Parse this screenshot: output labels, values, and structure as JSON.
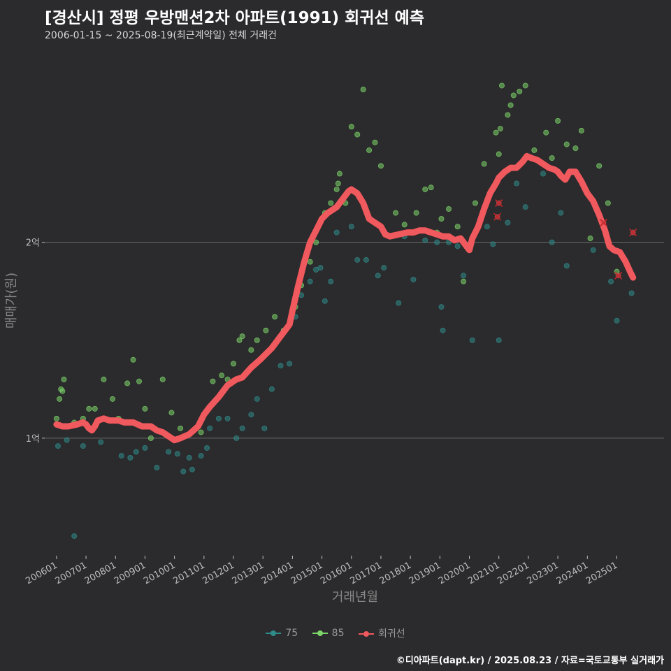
{
  "header": {
    "title": "[경산시] 정평 우방맨션2차 아파트(1991) 회귀선 예측",
    "subtitle": "2006-01-15 ~ 2025-08-19(최근계약일) 전체 거래건"
  },
  "footer": {
    "credit": "©디아파트(dapt.kr) / 2025.08.23 / 자료=국토교통부 실거래가"
  },
  "colors": {
    "background": "#2b2a2c",
    "series_75": "#2f8a8a",
    "series_85": "#7cd46a",
    "regression": "#f0595d",
    "gridline": "#6a6a6a"
  },
  "legend": [
    {
      "label": "75",
      "color": "#2f8a8a"
    },
    {
      "label": "85",
      "color": "#7cd46a"
    },
    {
      "label": "회귀선",
      "color": "#f0595d"
    }
  ],
  "chart_data": {
    "type": "scatter",
    "title": "[경산시] 정평 우방맨션2차 아파트(1991) 회귀선 예측",
    "xlabel": "거래년월",
    "ylabel": "매매가(원)",
    "x_unit": "decimal year",
    "y_unit": "억원",
    "xlim": [
      2005.6,
      2026.6
    ],
    "ylim": [
      0.4,
      2.98
    ],
    "y_ticks": [
      {
        "value": 1,
        "label": "1억"
      },
      {
        "value": 2,
        "label": "2억"
      }
    ],
    "x_ticks": [
      {
        "value": 2006,
        "label": "200601"
      },
      {
        "value": 2007,
        "label": "200701"
      },
      {
        "value": 2008,
        "label": "200801"
      },
      {
        "value": 2009,
        "label": "200901"
      },
      {
        "value": 2010,
        "label": "201001"
      },
      {
        "value": 2011,
        "label": "201101"
      },
      {
        "value": 2012,
        "label": "201201"
      },
      {
        "value": 2013,
        "label": "201301"
      },
      {
        "value": 2014,
        "label": "201401"
      },
      {
        "value": 2015,
        "label": "201501"
      },
      {
        "value": 2016,
        "label": "201601"
      },
      {
        "value": 2017,
        "label": "201701"
      },
      {
        "value": 2018,
        "label": "201801"
      },
      {
        "value": 2019,
        "label": "201901"
      },
      {
        "value": 2020,
        "label": "202001"
      },
      {
        "value": 2021,
        "label": "202101"
      },
      {
        "value": 2022,
        "label": "202201"
      },
      {
        "value": 2023,
        "label": "202301"
      },
      {
        "value": 2024,
        "label": "202401"
      },
      {
        "value": 2025,
        "label": "202501"
      }
    ],
    "series": [
      {
        "name": "75",
        "points": [
          [
            2006.05,
            0.96
          ],
          [
            2006.35,
            0.99
          ],
          [
            2006.6,
            0.5
          ],
          [
            2006.9,
            0.96
          ],
          [
            2007.5,
            0.98
          ],
          [
            2008.2,
            0.91
          ],
          [
            2008.5,
            0.9
          ],
          [
            2008.7,
            0.93
          ],
          [
            2009.0,
            0.95
          ],
          [
            2009.4,
            0.85
          ],
          [
            2009.8,
            0.93
          ],
          [
            2010.1,
            0.92
          ],
          [
            2010.3,
            0.83
          ],
          [
            2010.5,
            0.9
          ],
          [
            2010.6,
            0.84
          ],
          [
            2010.9,
            0.91
          ],
          [
            2011.1,
            0.95
          ],
          [
            2011.2,
            1.05
          ],
          [
            2011.5,
            1.1
          ],
          [
            2011.8,
            1.1
          ],
          [
            2012.1,
            1.0
          ],
          [
            2012.3,
            1.05
          ],
          [
            2012.6,
            1.12
          ],
          [
            2012.8,
            1.2
          ],
          [
            2013.05,
            1.05
          ],
          [
            2013.3,
            1.25
          ],
          [
            2013.6,
            1.37
          ],
          [
            2013.9,
            1.38
          ],
          [
            2014.1,
            1.62
          ],
          [
            2014.3,
            1.73
          ],
          [
            2014.6,
            1.8
          ],
          [
            2014.8,
            1.86
          ],
          [
            2014.95,
            1.87
          ],
          [
            2015.1,
            1.7
          ],
          [
            2015.3,
            1.8
          ],
          [
            2015.5,
            2.05
          ],
          [
            2015.7,
            2.22
          ],
          [
            2016.0,
            2.08
          ],
          [
            2016.2,
            1.91
          ],
          [
            2016.5,
            1.91
          ],
          [
            2016.9,
            1.83
          ],
          [
            2017.1,
            1.87
          ],
          [
            2017.6,
            1.69
          ],
          [
            2017.8,
            2.03
          ],
          [
            2018.1,
            1.81
          ],
          [
            2018.5,
            2.01
          ],
          [
            2018.9,
            2.0
          ],
          [
            2019.05,
            1.67
          ],
          [
            2019.1,
            1.55
          ],
          [
            2019.3,
            2.0
          ],
          [
            2019.6,
            1.98
          ],
          [
            2019.8,
            1.83
          ],
          [
            2020.1,
            1.5
          ],
          [
            2020.6,
            2.08
          ],
          [
            2020.8,
            1.99
          ],
          [
            2021.0,
            1.5
          ],
          [
            2021.3,
            2.1
          ],
          [
            2021.6,
            2.3
          ],
          [
            2021.9,
            2.18
          ],
          [
            2022.5,
            2.35
          ],
          [
            2022.8,
            2.0
          ],
          [
            2023.1,
            2.15
          ],
          [
            2023.3,
            1.88
          ],
          [
            2024.2,
            1.96
          ],
          [
            2024.8,
            1.8
          ],
          [
            2025.0,
            1.6
          ],
          [
            2025.5,
            1.74
          ]
        ]
      },
      {
        "name": "85",
        "points": [
          [
            2006.0,
            1.1
          ],
          [
            2006.1,
            1.2
          ],
          [
            2006.15,
            1.25
          ],
          [
            2006.2,
            1.24
          ],
          [
            2006.25,
            1.3
          ],
          [
            2006.6,
            1.08
          ],
          [
            2006.9,
            1.1
          ],
          [
            2007.1,
            1.15
          ],
          [
            2007.3,
            1.15
          ],
          [
            2007.6,
            1.3
          ],
          [
            2007.9,
            1.2
          ],
          [
            2008.1,
            1.1
          ],
          [
            2008.4,
            1.28
          ],
          [
            2008.6,
            1.4
          ],
          [
            2008.8,
            1.29
          ],
          [
            2009.0,
            1.15
          ],
          [
            2009.2,
            1.0
          ],
          [
            2009.6,
            1.3
          ],
          [
            2009.9,
            1.13
          ],
          [
            2010.2,
            1.05
          ],
          [
            2010.9,
            1.03
          ],
          [
            2011.1,
            1.14
          ],
          [
            2011.3,
            1.29
          ],
          [
            2011.6,
            1.32
          ],
          [
            2011.8,
            1.3
          ],
          [
            2012.0,
            1.38
          ],
          [
            2012.2,
            1.5
          ],
          [
            2012.3,
            1.52
          ],
          [
            2012.6,
            1.45
          ],
          [
            2012.8,
            1.5
          ],
          [
            2013.1,
            1.55
          ],
          [
            2013.4,
            1.62
          ],
          [
            2013.7,
            1.55
          ],
          [
            2014.1,
            1.67
          ],
          [
            2014.3,
            1.78
          ],
          [
            2014.6,
            1.9
          ],
          [
            2014.8,
            2.0
          ],
          [
            2015.1,
            2.15
          ],
          [
            2015.3,
            2.2
          ],
          [
            2015.5,
            2.27
          ],
          [
            2015.55,
            2.3
          ],
          [
            2015.6,
            2.35
          ],
          [
            2015.8,
            2.2
          ],
          [
            2016.0,
            2.59
          ],
          [
            2016.2,
            2.55
          ],
          [
            2016.4,
            2.78
          ],
          [
            2016.6,
            2.47
          ],
          [
            2016.8,
            2.51
          ],
          [
            2017.0,
            2.39
          ],
          [
            2017.5,
            2.15
          ],
          [
            2017.8,
            2.09
          ],
          [
            2018.2,
            2.15
          ],
          [
            2018.5,
            2.27
          ],
          [
            2018.7,
            2.28
          ],
          [
            2018.9,
            2.05
          ],
          [
            2019.05,
            2.12
          ],
          [
            2019.3,
            2.17
          ],
          [
            2019.6,
            2.08
          ],
          [
            2019.8,
            1.8
          ],
          [
            2020.2,
            2.2
          ],
          [
            2020.5,
            2.4
          ],
          [
            2020.7,
            2.25
          ],
          [
            2020.9,
            2.56
          ],
          [
            2021.0,
            2.45
          ],
          [
            2021.05,
            2.58
          ],
          [
            2021.1,
            2.8
          ],
          [
            2021.3,
            2.65
          ],
          [
            2021.4,
            2.7
          ],
          [
            2021.5,
            2.75
          ],
          [
            2021.7,
            2.77
          ],
          [
            2021.9,
            2.8
          ],
          [
            2022.2,
            2.47
          ],
          [
            2022.6,
            2.56
          ],
          [
            2022.8,
            2.43
          ],
          [
            2023.0,
            2.62
          ],
          [
            2023.3,
            2.5
          ],
          [
            2023.6,
            2.48
          ],
          [
            2023.8,
            2.57
          ],
          [
            2024.1,
            2.02
          ],
          [
            2024.4,
            2.39
          ],
          [
            2024.7,
            2.2
          ],
          [
            2025.0,
            1.85
          ]
        ]
      }
    ],
    "highlight_points": [
      [
        2020.95,
        2.13
      ],
      [
        2021.0,
        2.2
      ],
      [
        2024.55,
        2.1
      ],
      [
        2025.05,
        1.83
      ],
      [
        2025.55,
        2.05
      ]
    ],
    "regression": {
      "name": "회귀선",
      "points": [
        [
          2006.0,
          1.07
        ],
        [
          2006.2,
          1.06
        ],
        [
          2006.4,
          1.06
        ],
        [
          2006.7,
          1.07
        ],
        [
          2006.9,
          1.08
        ],
        [
          2007.0,
          1.07
        ],
        [
          2007.1,
          1.05
        ],
        [
          2007.2,
          1.04
        ],
        [
          2007.3,
          1.06
        ],
        [
          2007.4,
          1.09
        ],
        [
          2007.6,
          1.1
        ],
        [
          2007.8,
          1.09
        ],
        [
          2008.1,
          1.09
        ],
        [
          2008.3,
          1.08
        ],
        [
          2008.6,
          1.08
        ],
        [
          2008.9,
          1.06
        ],
        [
          2009.2,
          1.06
        ],
        [
          2009.4,
          1.04
        ],
        [
          2009.6,
          1.03
        ],
        [
          2009.8,
          1.01
        ],
        [
          2010.0,
          0.99
        ],
        [
          2010.2,
          1.0
        ],
        [
          2010.5,
          1.02
        ],
        [
          2010.8,
          1.06
        ],
        [
          2011.0,
          1.12
        ],
        [
          2011.2,
          1.16
        ],
        [
          2011.5,
          1.21
        ],
        [
          2011.8,
          1.27
        ],
        [
          2012.1,
          1.3
        ],
        [
          2012.3,
          1.31
        ],
        [
          2012.6,
          1.36
        ],
        [
          2012.9,
          1.4
        ],
        [
          2013.1,
          1.43
        ],
        [
          2013.3,
          1.46
        ],
        [
          2013.6,
          1.52
        ],
        [
          2013.9,
          1.58
        ],
        [
          2014.0,
          1.65
        ],
        [
          2014.2,
          1.78
        ],
        [
          2014.4,
          1.9
        ],
        [
          2014.6,
          2.0
        ],
        [
          2014.8,
          2.06
        ],
        [
          2015.0,
          2.12
        ],
        [
          2015.2,
          2.15
        ],
        [
          2015.5,
          2.18
        ],
        [
          2015.7,
          2.22
        ],
        [
          2015.9,
          2.26
        ],
        [
          2016.0,
          2.27
        ],
        [
          2016.2,
          2.25
        ],
        [
          2016.4,
          2.2
        ],
        [
          2016.6,
          2.12
        ],
        [
          2016.8,
          2.1
        ],
        [
          2017.0,
          2.08
        ],
        [
          2017.15,
          2.04
        ],
        [
          2017.3,
          2.03
        ],
        [
          2017.6,
          2.04
        ],
        [
          2017.9,
          2.05
        ],
        [
          2018.1,
          2.05
        ],
        [
          2018.3,
          2.06
        ],
        [
          2018.5,
          2.06
        ],
        [
          2018.7,
          2.05
        ],
        [
          2018.9,
          2.04
        ],
        [
          2019.1,
          2.03
        ],
        [
          2019.3,
          2.03
        ],
        [
          2019.5,
          2.01
        ],
        [
          2019.7,
          2.02
        ],
        [
          2019.9,
          1.98
        ],
        [
          2020.0,
          1.96
        ],
        [
          2020.1,
          2.02
        ],
        [
          2020.3,
          2.08
        ],
        [
          2020.5,
          2.17
        ],
        [
          2020.7,
          2.25
        ],
        [
          2020.9,
          2.3
        ],
        [
          2021.0,
          2.33
        ],
        [
          2021.2,
          2.36
        ],
        [
          2021.4,
          2.38
        ],
        [
          2021.6,
          2.38
        ],
        [
          2021.8,
          2.41
        ],
        [
          2021.95,
          2.44
        ],
        [
          2022.1,
          2.43
        ],
        [
          2022.3,
          2.42
        ],
        [
          2022.5,
          2.4
        ],
        [
          2022.7,
          2.38
        ],
        [
          2022.9,
          2.37
        ],
        [
          2023.0,
          2.36
        ],
        [
          2023.1,
          2.34
        ],
        [
          2023.25,
          2.32
        ],
        [
          2023.4,
          2.36
        ],
        [
          2023.6,
          2.36
        ],
        [
          2023.8,
          2.31
        ],
        [
          2024.0,
          2.25
        ],
        [
          2024.2,
          2.21
        ],
        [
          2024.4,
          2.14
        ],
        [
          2024.6,
          2.06
        ],
        [
          2024.75,
          1.98
        ],
        [
          2024.9,
          1.96
        ],
        [
          2025.1,
          1.95
        ],
        [
          2025.3,
          1.9
        ],
        [
          2025.45,
          1.85
        ],
        [
          2025.55,
          1.82
        ]
      ]
    }
  }
}
